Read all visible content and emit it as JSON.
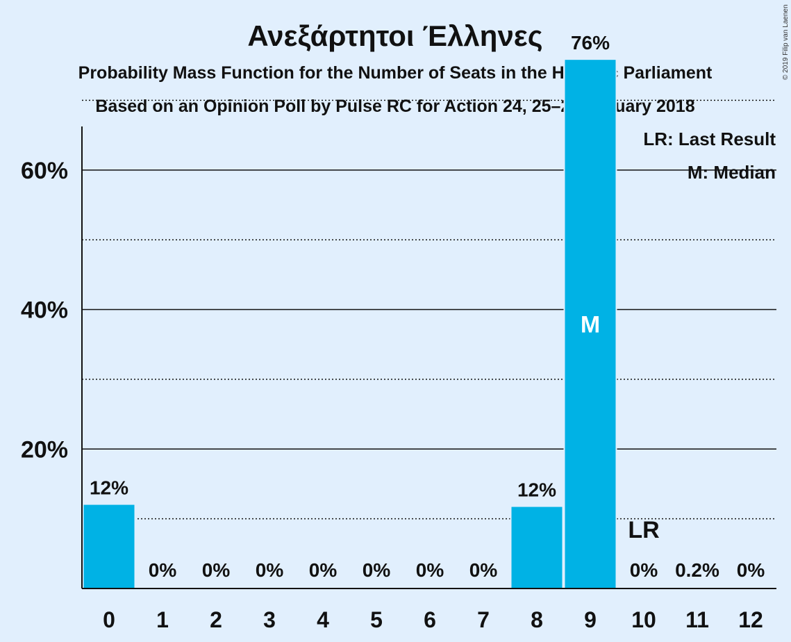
{
  "chart_data": {
    "type": "bar",
    "title": "Ανεξάρτητοι Έλληνες",
    "subtitle": "Probability Mass Function for the Number of Seats in the Hellenic Parliament",
    "subtitle2": "Based on an Opinion Poll by Pulse RC for Action 24, 25–29 January 2018",
    "categories": [
      "0",
      "1",
      "2",
      "3",
      "4",
      "5",
      "6",
      "7",
      "8",
      "9",
      "10",
      "11",
      "12"
    ],
    "values": [
      12,
      0,
      0,
      0,
      0,
      0,
      0,
      0,
      11.7,
      75.8,
      0,
      0.2,
      0
    ],
    "labels": [
      "12%",
      "0%",
      "0%",
      "0%",
      "0%",
      "0%",
      "0%",
      "0%",
      "12%",
      "76%",
      "0%",
      "0.2%",
      "0%"
    ],
    "ylim": [
      0,
      80
    ],
    "yticks": [
      20,
      40,
      60
    ],
    "ytick_labels": [
      "20%",
      "40%",
      "60%"
    ],
    "minor_gridlines": [
      10,
      30,
      50,
      70
    ],
    "bar_color": "#00b2e5",
    "last_result": {
      "category": "10",
      "label": "LR"
    },
    "median": {
      "category": "9",
      "label": "M"
    },
    "legend": [
      "LR: Last Result",
      "M: Median"
    ],
    "legend_position": "top-right"
  },
  "copyright": "© 2019 Filip van Laenen"
}
